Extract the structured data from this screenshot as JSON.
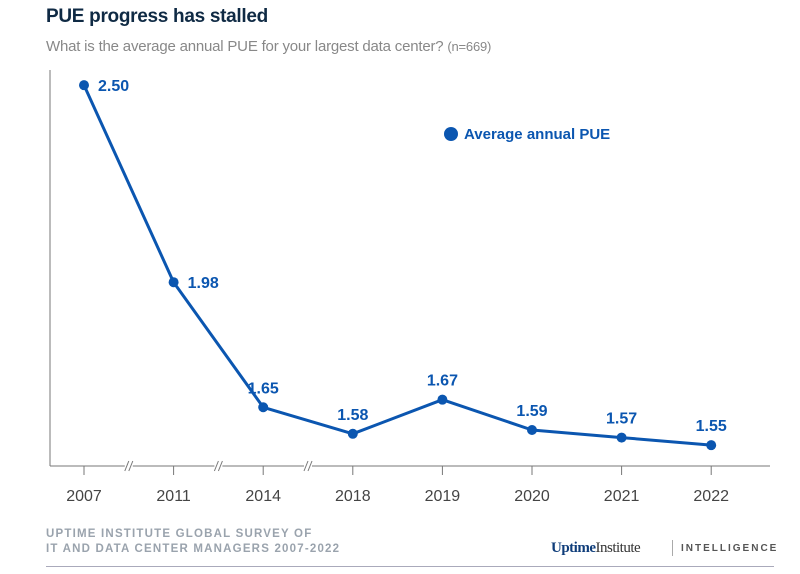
{
  "chart_data": {
    "type": "line",
    "title": "PUE progress has stalled",
    "subtitle": "What is the average annual PUE for your largest data center?",
    "sample": "(n=669)",
    "categories": [
      "2007",
      "2011",
      "2014",
      "2018",
      "2019",
      "2020",
      "2021",
      "2022"
    ],
    "series": [
      {
        "name": "Average annual PUE",
        "values": [
          2.5,
          1.98,
          1.65,
          1.58,
          1.67,
          1.59,
          1.57,
          1.55
        ]
      }
    ],
    "data_labels": [
      "2.50",
      "1.98",
      "1.65",
      "1.58",
      "1.67",
      "1.59",
      "1.57",
      "1.55"
    ],
    "axis_breaks_after": [
      "2007",
      "2011",
      "2014"
    ],
    "ylim": [
      1.495,
      2.54
    ],
    "grid": false,
    "legend": "top-right",
    "color": "#0b56b0"
  },
  "footer": {
    "source_line1": "UPTIME INSTITUTE GLOBAL SURVEY OF",
    "source_line2": "IT AND DATA CENTER MANAGERS 2007-2022",
    "logo": "UptimeInstitute",
    "division": "INTELLIGENCE"
  }
}
